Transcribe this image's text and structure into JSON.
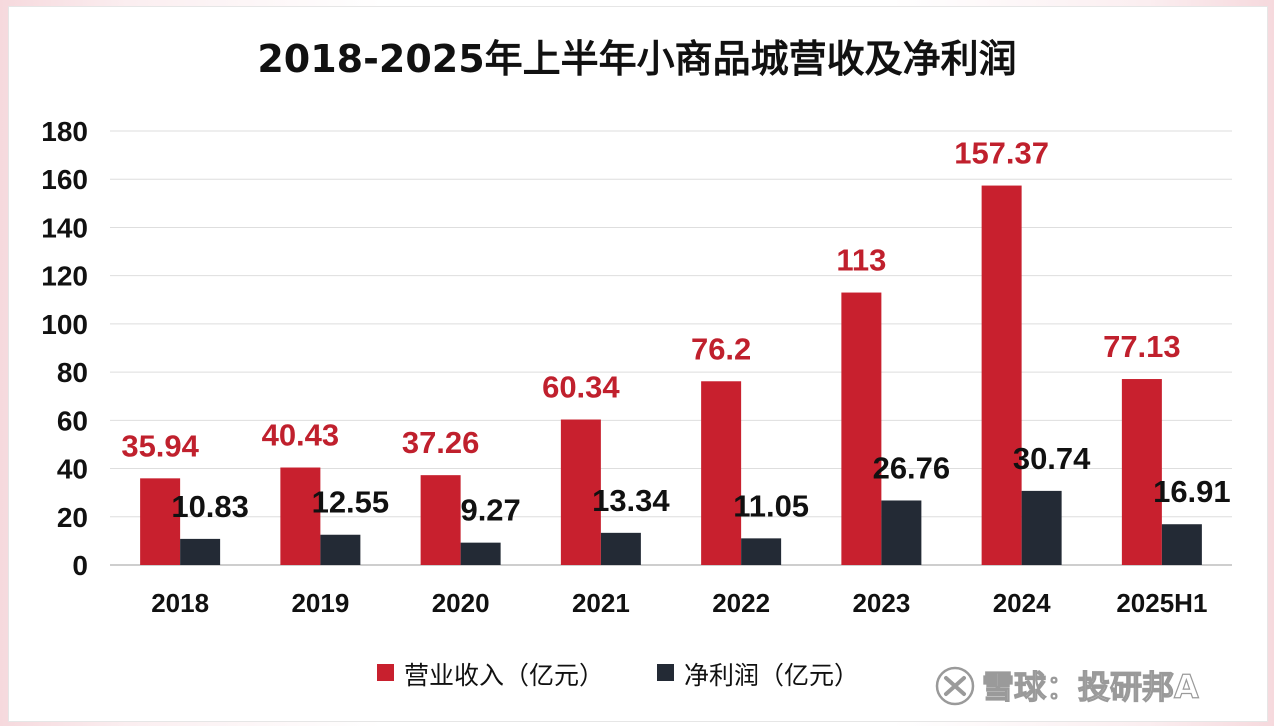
{
  "chart_data": {
    "type": "bar",
    "title": "2018-2025年上半年小商品城营收及净利润",
    "categories": [
      "2018",
      "2019",
      "2020",
      "2021",
      "2022",
      "2023",
      "2024",
      "2025H1"
    ],
    "series": [
      {
        "name": "营业收入（亿元）",
        "color": "#c8202e",
        "values": [
          35.94,
          40.43,
          37.26,
          60.34,
          76.2,
          113,
          157.37,
          77.13
        ],
        "labels": [
          "35.94",
          "40.43",
          "37.26",
          "60.34",
          "76.2",
          "113",
          "157.37",
          "77.13"
        ]
      },
      {
        "name": "净利润（亿元）",
        "color": "#232a35",
        "values": [
          10.83,
          12.55,
          9.27,
          13.34,
          11.05,
          26.76,
          30.74,
          16.91
        ],
        "labels": [
          "10.83",
          "12.55",
          "9.27",
          "13.34",
          "11.05",
          "26.76",
          "30.74",
          "16.91"
        ]
      }
    ],
    "ylim": [
      0,
      180
    ],
    "yticks": [
      0,
      20,
      40,
      60,
      80,
      100,
      120,
      140,
      160,
      180
    ],
    "grid": true,
    "legend_position": "bottom"
  },
  "watermark": {
    "text": "雪球：投研邦A",
    "icon": "xueqiu-logo-icon"
  }
}
